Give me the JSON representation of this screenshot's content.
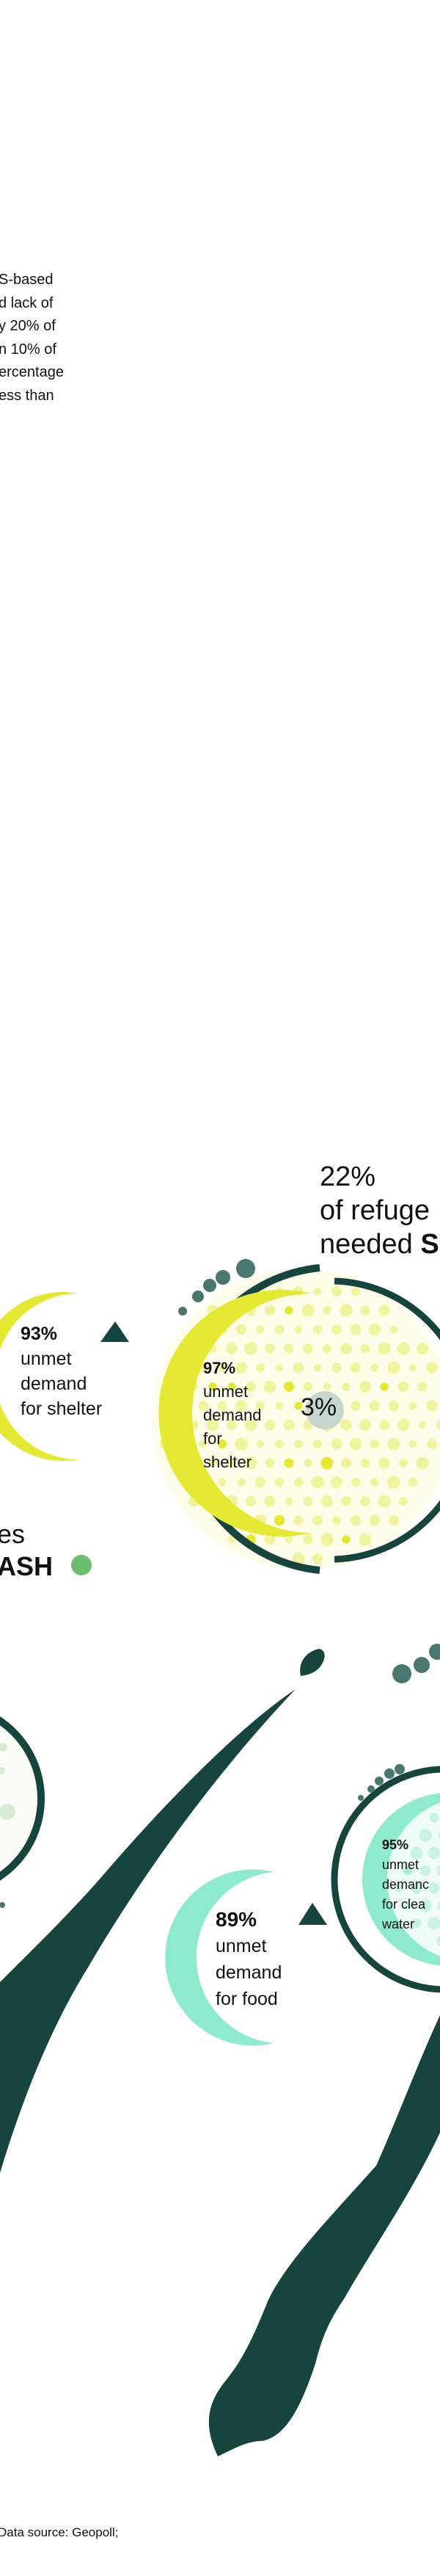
{
  "intro_lines": [
    "S-based",
    "d lack of",
    "y 20% of",
    "n 10% of",
    "ercentage",
    "ess than"
  ],
  "headline_right": {
    "value": "22%",
    "line1": "of refuge",
    "line2_regular": "needed ",
    "line2_bold": "S"
  },
  "headline_left": {
    "line1": "es",
    "line2_bold": "ASH"
  },
  "stats": {
    "shelter_left": {
      "value": "93%",
      "lines": [
        "unmet",
        "demand",
        "for shelter"
      ]
    },
    "shelter_center": {
      "value": "97%",
      "lines": [
        "unmet",
        "demand",
        "for",
        "shelter"
      ]
    },
    "met_center": {
      "value": "3%"
    },
    "food": {
      "value": "89%",
      "lines": [
        "unmet",
        "demand",
        "for food"
      ]
    },
    "water": {
      "value": "95%",
      "lines": [
        "unmet",
        "demanc",
        "for clea",
        "water"
      ]
    }
  },
  "footer": {
    "source": "Data source: Geopoll;"
  },
  "colors": {
    "dark": "#16443f",
    "yellow": "#e4e832",
    "pale_yellow": "#f1f29c",
    "cream": "#fdfde9",
    "teal": "#8eeacf",
    "green_dot": "#6cbf6a",
    "grey": "#c6d7cd",
    "dot_grey": "#4a7670"
  }
}
